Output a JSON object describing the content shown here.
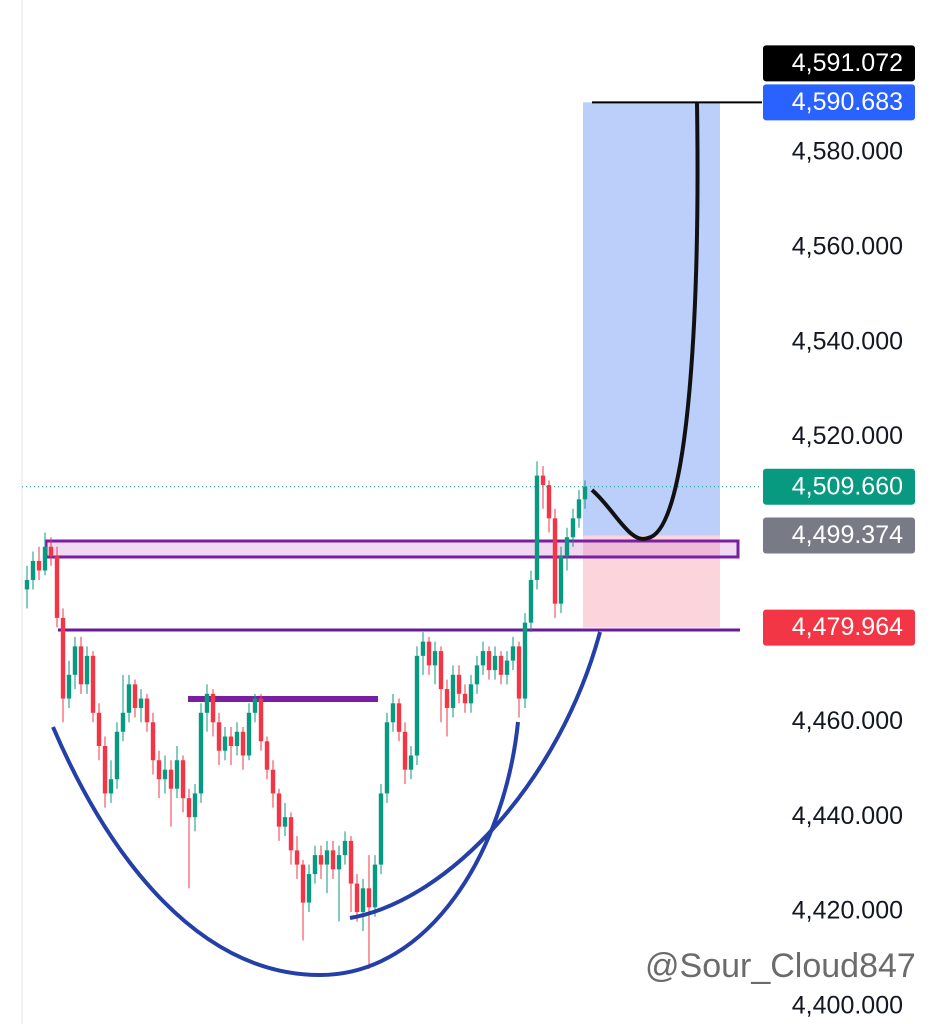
{
  "chart_data": {
    "type": "candlestick",
    "ylim": [
      4396.4,
      4612.25
    ],
    "yticks": [
      {
        "value": 4400,
        "label": "4,400.000"
      },
      {
        "value": 4420,
        "label": "4,420.000"
      },
      {
        "value": 4440,
        "label": "4,440.000"
      },
      {
        "value": 4460,
        "label": "4,460.000"
      },
      {
        "value": 4520,
        "label": "4,520.000"
      },
      {
        "value": 4540,
        "label": "4,540.000"
      },
      {
        "value": 4560,
        "label": "4,560.000"
      },
      {
        "value": 4580,
        "label": "4,580.000"
      }
    ],
    "up_color": "#089981",
    "down_color": "#f23645",
    "open": [
      4488,
      4490,
      4494,
      4492,
      4497,
      4495,
      4482,
      4465,
      4470,
      4476,
      4468,
      4474,
      4462,
      4455,
      4445,
      4448,
      4458,
      4462,
      4468,
      4463,
      4465,
      4460,
      4452,
      4448,
      4450,
      4446,
      4452,
      4444,
      4440,
      4445,
      4462,
      4466,
      4460,
      4454,
      4457,
      4455,
      4458,
      4453,
      4462,
      4465,
      4456,
      4450,
      4445,
      4438,
      4440,
      4433,
      4430,
      4422,
      4428,
      4432,
      4430,
      4433,
      4429,
      4432,
      4435,
      4426,
      4420,
      4425,
      4421,
      4430,
      4445,
      4460,
      4464,
      4458,
      4450,
      4453,
      4474,
      4477,
      4472,
      4475,
      4467,
      4463,
      4470,
      4466,
      4464,
      4468,
      4472,
      4475,
      4471,
      4474,
      4470,
      4473,
      4476,
      4465,
      4481,
      4490,
      4512,
      4510,
      4503,
      4485,
      4495,
      4499,
      4503,
      4507
    ],
    "high": [
      4493,
      4496,
      4497,
      4500,
      4499,
      4497,
      4484,
      4473,
      4478,
      4478,
      4476,
      4475,
      4464,
      4457,
      4452,
      4460,
      4470,
      4470,
      4469,
      4467,
      4466,
      4462,
      4454,
      4453,
      4452,
      4455,
      4453,
      4446,
      4447,
      4464,
      4468,
      4467,
      4462,
      4459,
      4459,
      4460,
      4459,
      4464,
      4466,
      4466,
      4457,
      4452,
      4446,
      4443,
      4441,
      4436,
      4431,
      4430,
      4434,
      4434,
      4435,
      4435,
      4434,
      4437,
      4436,
      4428,
      4427,
      4432,
      4432,
      4447,
      4462,
      4466,
      4465,
      4460,
      4455,
      4476,
      4479,
      4478,
      4477,
      4476,
      4469,
      4472,
      4472,
      4468,
      4470,
      4474,
      4477,
      4476,
      4476,
      4475,
      4475,
      4478,
      4477,
      4483,
      4492,
      4515,
      4514,
      4511,
      4505,
      4497,
      4501,
      4505,
      4509,
      4511
    ],
    "low": [
      4484,
      4488,
      4490,
      4491,
      4493,
      4480,
      4460,
      4463,
      4467,
      4466,
      4466,
      4460,
      4452,
      4442,
      4443,
      4446,
      4456,
      4460,
      4461,
      4460,
      4458,
      4449,
      4444,
      4445,
      4438,
      4444,
      4441,
      4425,
      4437,
      4443,
      4458,
      4457,
      4451,
      4452,
      4451,
      4453,
      4450,
      4452,
      4460,
      4454,
      4448,
      4442,
      4435,
      4436,
      4430,
      4427,
      4414,
      4420,
      4426,
      4427,
      4424,
      4427,
      4418,
      4430,
      4420,
      4418,
      4416,
      4408,
      4419,
      4428,
      4443,
      4458,
      4456,
      4447,
      4448,
      4451,
      4470,
      4470,
      4468,
      4460,
      4457,
      4461,
      4464,
      4462,
      4462,
      4466,
      4470,
      4469,
      4469,
      4468,
      4468,
      4471,
      4461,
      4463,
      4479,
      4488,
      4505,
      4500,
      4482,
      4483,
      4492,
      4497,
      4501,
      4505
    ],
    "close": [
      4490,
      4494,
      4492,
      4497,
      4495,
      4482,
      4465,
      4470,
      4476,
      4468,
      4474,
      4462,
      4455,
      4445,
      4448,
      4458,
      4462,
      4468,
      4463,
      4465,
      4460,
      4452,
      4448,
      4450,
      4446,
      4452,
      4444,
      4440,
      4445,
      4462,
      4466,
      4460,
      4454,
      4457,
      4455,
      4458,
      4453,
      4462,
      4465,
      4456,
      4450,
      4445,
      4438,
      4440,
      4433,
      4430,
      4422,
      4428,
      4432,
      4430,
      4433,
      4429,
      4432,
      4435,
      4426,
      4420,
      4425,
      4421,
      4430,
      4445,
      4460,
      4464,
      4458,
      4450,
      4453,
      4474,
      4477,
      4472,
      4475,
      4467,
      4463,
      4470,
      4466,
      4464,
      4468,
      4472,
      4475,
      4471,
      4474,
      4470,
      4473,
      4476,
      4465,
      4481,
      4490,
      4512,
      4510,
      4503,
      4485,
      4495,
      4499,
      4503,
      4507,
      4509.66
    ],
    "price_labels": [
      {
        "value": 4591.072,
        "label": "4,591.072",
        "color": "#000000"
      },
      {
        "value": 4590.683,
        "label": "4,590.683",
        "color": "#2962ff"
      },
      {
        "value": 4509.66,
        "label": "4,509.660",
        "color": "#089981"
      },
      {
        "value": 4499.374,
        "label": "4,499.374",
        "color": "#787b86"
      },
      {
        "value": 4479.964,
        "label": "4,479.964",
        "color": "#f23645"
      }
    ],
    "position": {
      "target": 4590.683,
      "entry": 4499.374,
      "stop": 4479.964,
      "profit_color": "#bccffa",
      "loss_color": "#fcd5dc"
    },
    "current_price": 4509.66,
    "watermark": "@Sour_Cloud847"
  }
}
